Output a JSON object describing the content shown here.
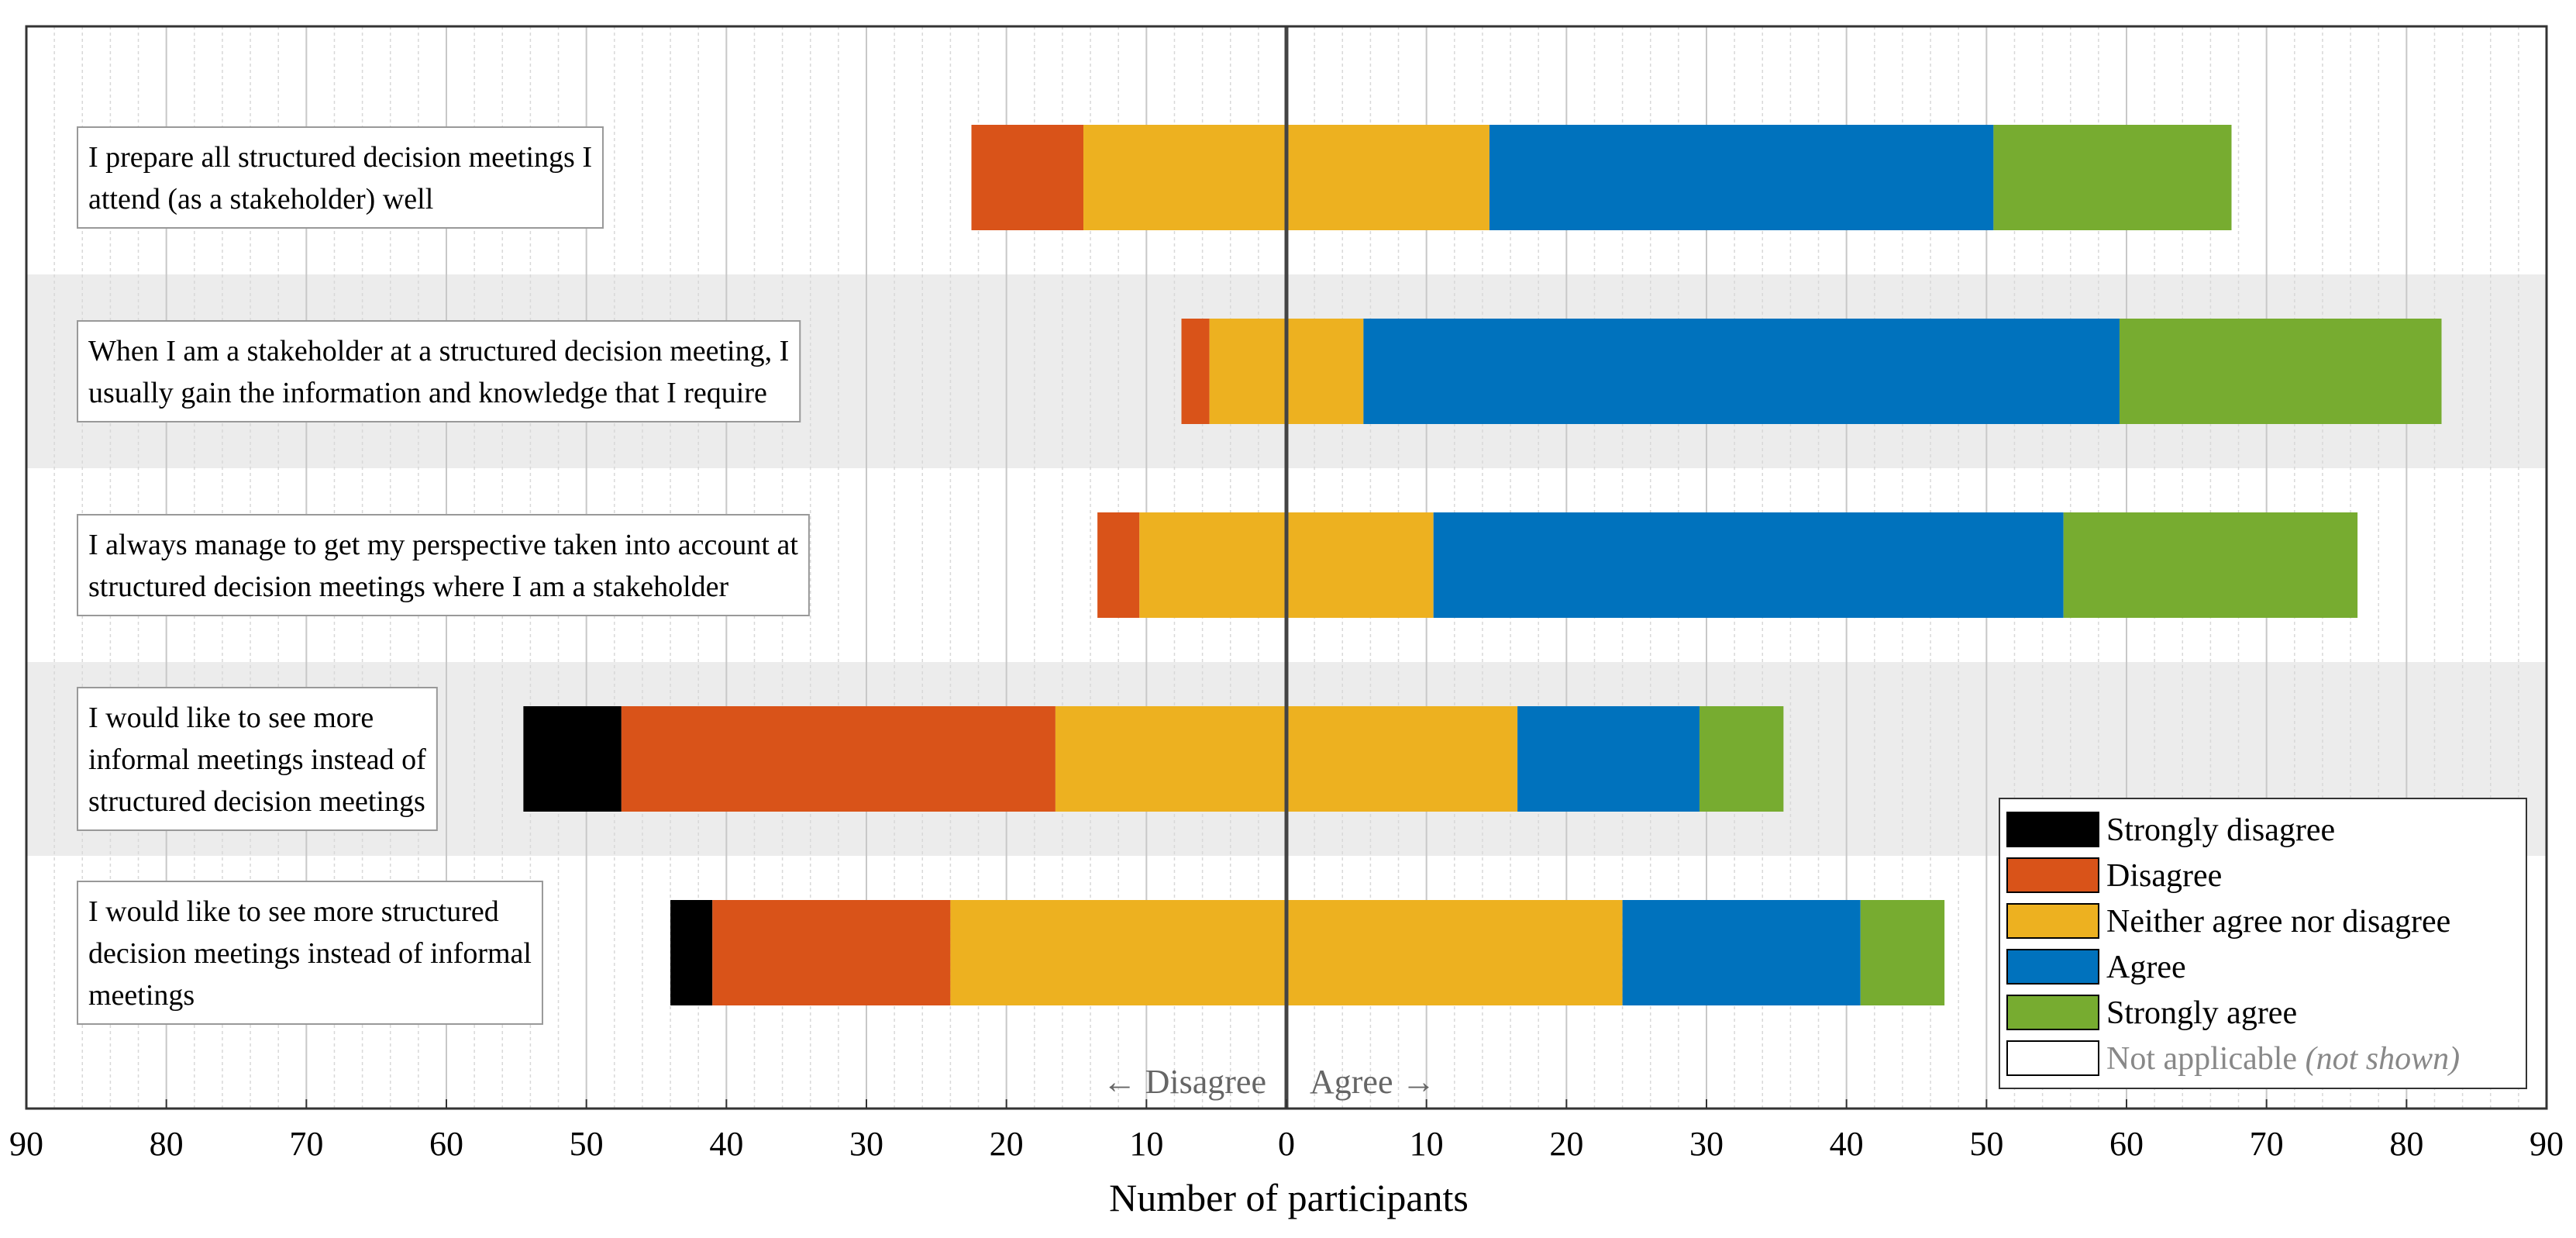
{
  "chart_data": {
    "type": "bar",
    "orientation": "horizontal-diverging",
    "stacked": true,
    "xlabel": "Number of participants",
    "xlim": [
      -90,
      90
    ],
    "xticks": [
      -90,
      -80,
      -70,
      -60,
      -50,
      -40,
      -30,
      -20,
      -10,
      0,
      10,
      20,
      30,
      40,
      50,
      60,
      70,
      80,
      90
    ],
    "xtick_labels": [
      "90",
      "80",
      "70",
      "60",
      "50",
      "40",
      "30",
      "20",
      "10",
      "0",
      "10",
      "20",
      "30",
      "40",
      "50",
      "60",
      "70",
      "80",
      "90"
    ],
    "direction_labels": {
      "left": "← Disagree",
      "right": "Agree →"
    },
    "grid": true,
    "legend_position": "bottom-right",
    "series": [
      {
        "name": "Strongly disagree",
        "color": "#000000"
      },
      {
        "name": "Disagree",
        "color": "#D95319"
      },
      {
        "name": "Neither agree nor disagree",
        "color": "#EDB120"
      },
      {
        "name": "Agree",
        "color": "#0072BD"
      },
      {
        "name": "Strongly agree",
        "color": "#77AC30"
      },
      {
        "name": "Not applicable",
        "name_suffix": "(not shown)",
        "color": "#FFFFFF"
      }
    ],
    "categories": [
      {
        "lines": [
          "I prepare all structured decision meetings I",
          "attend (as a stakeholder) well"
        ],
        "values": [
          0,
          8,
          29,
          36,
          17
        ]
      },
      {
        "lines": [
          "When I am a stakeholder at a structured decision meeting, I",
          "usually gain the information and knowledge that I require"
        ],
        "values": [
          0,
          2,
          11,
          54,
          23
        ]
      },
      {
        "lines": [
          "I always manage to get my perspective taken into account at",
          "structured decision meetings where I am a stakeholder"
        ],
        "values": [
          0,
          3,
          21,
          45,
          21
        ]
      },
      {
        "lines": [
          "I would like to see more",
          "informal meetings instead of",
          "structured decision meetings"
        ],
        "values": [
          7,
          31,
          33,
          13,
          6
        ]
      },
      {
        "lines": [
          "I would like to see more structured",
          "decision meetings instead of informal",
          "meetings"
        ],
        "values": [
          3,
          17,
          48,
          17,
          6
        ]
      }
    ]
  }
}
